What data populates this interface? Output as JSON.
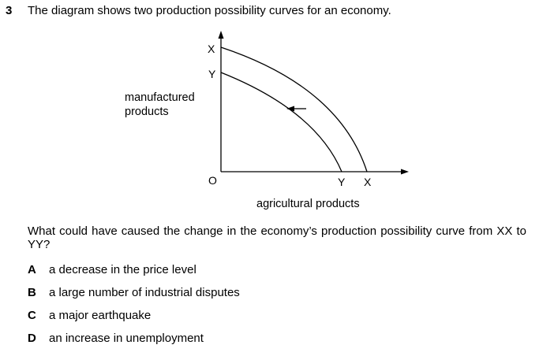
{
  "question": {
    "number": "3",
    "stem": "The diagram shows two production possibility curves for an economy.",
    "prompt": "What could have caused the change in the economy’s production possibility curve from XX to YY?"
  },
  "diagram": {
    "y_axis_label_line1": "manufactured",
    "y_axis_label_line2": "products",
    "x_axis_label": "agricultural products",
    "origin_label": "O",
    "curve_outer": {
      "y_intercept_label": "X",
      "x_intercept_label": "X"
    },
    "curve_inner": {
      "y_intercept_label": "Y",
      "x_intercept_label": "Y"
    },
    "shift_direction": "inward",
    "line_color": "#000000"
  },
  "options": [
    {
      "letter": "A",
      "text": "a decrease in the price level"
    },
    {
      "letter": "B",
      "text": "a large number of industrial disputes"
    },
    {
      "letter": "C",
      "text": "a major earthquake"
    },
    {
      "letter": "D",
      "text": "an increase in unemployment"
    }
  ]
}
